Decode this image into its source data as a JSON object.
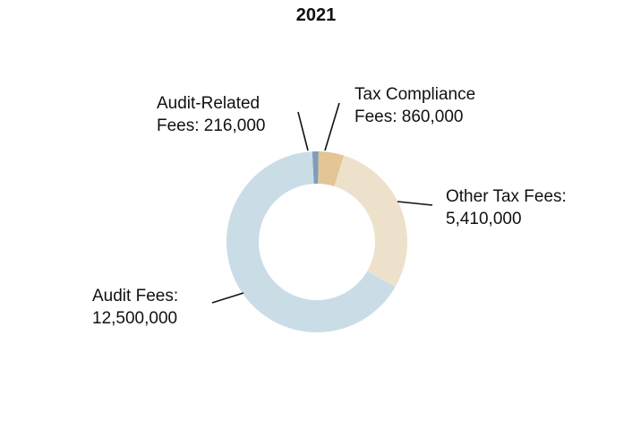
{
  "chart_data": {
    "type": "pie",
    "title": "2021",
    "donut": true,
    "categories": [
      "Audit-Related Fees",
      "Tax Compliance Fees",
      "Other Tax Fees",
      "Audit Fees"
    ],
    "values": [
      216000,
      860000,
      5410000,
      12500000
    ],
    "labels": [
      [
        "Audit-Related",
        "Fees: 216,000"
      ],
      [
        "Tax Compliance",
        "Fees: 860,000"
      ],
      [
        "Other Tax Fees:",
        "5,410,000"
      ],
      [
        "Audit Fees:",
        "12,500,000"
      ]
    ],
    "colors": [
      "#7f9db9",
      "#e3c596",
      "#eee1cb",
      "#cadde7"
    ],
    "legend": "none"
  }
}
